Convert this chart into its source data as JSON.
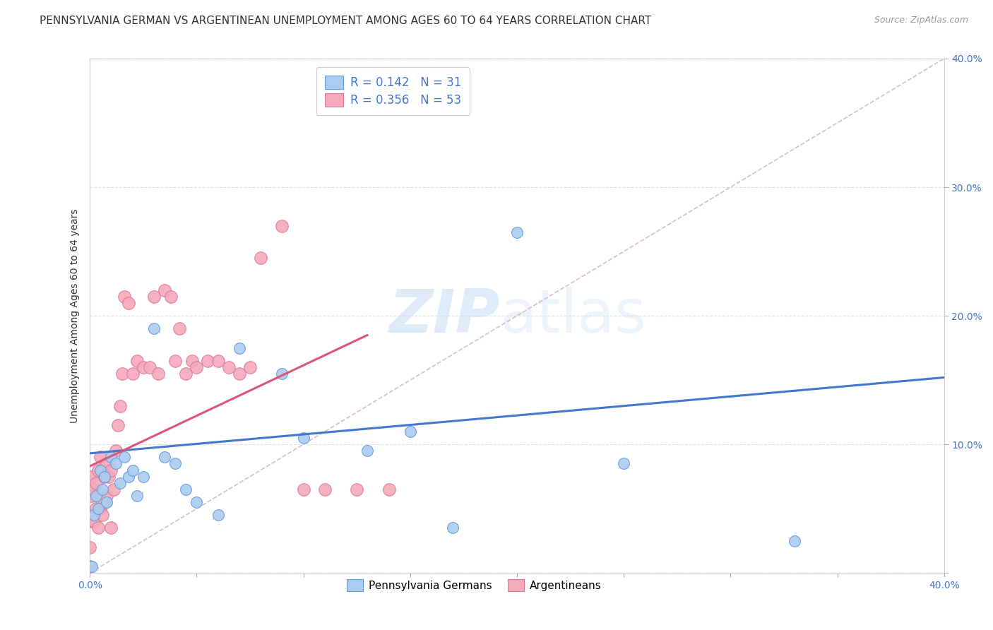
{
  "title": "PENNSYLVANIA GERMAN VS ARGENTINEAN UNEMPLOYMENT AMONG AGES 60 TO 64 YEARS CORRELATION CHART",
  "source": "Source: ZipAtlas.com",
  "ylabel": "Unemployment Among Ages 60 to 64 years",
  "xlim": [
    0.0,
    0.4
  ],
  "ylim": [
    0.0,
    0.4
  ],
  "background_color": "#ffffff",
  "watermark_zip": "ZIP",
  "watermark_atlas": "atlas",
  "blue_R": "0.142",
  "blue_N": "31",
  "pink_R": "0.356",
  "pink_N": "53",
  "blue_color": "#aaccf0",
  "pink_color": "#f5aabb",
  "blue_edge_color": "#6699dd",
  "pink_edge_color": "#dd7799",
  "blue_line_color": "#4477cc",
  "pink_line_color": "#dd5577",
  "blue_scatter_x": [
    0.001,
    0.002,
    0.003,
    0.004,
    0.005,
    0.006,
    0.007,
    0.008,
    0.01,
    0.012,
    0.014,
    0.016,
    0.018,
    0.02,
    0.022,
    0.025,
    0.03,
    0.035,
    0.04,
    0.045,
    0.05,
    0.06,
    0.07,
    0.09,
    0.1,
    0.13,
    0.15,
    0.17,
    0.2,
    0.25,
    0.33
  ],
  "blue_scatter_y": [
    0.005,
    0.045,
    0.06,
    0.05,
    0.08,
    0.065,
    0.075,
    0.055,
    0.09,
    0.085,
    0.07,
    0.09,
    0.075,
    0.08,
    0.06,
    0.075,
    0.19,
    0.09,
    0.085,
    0.065,
    0.055,
    0.045,
    0.175,
    0.155,
    0.105,
    0.095,
    0.11,
    0.035,
    0.265,
    0.085,
    0.025
  ],
  "pink_scatter_x": [
    0.0,
    0.0,
    0.0,
    0.001,
    0.001,
    0.002,
    0.002,
    0.003,
    0.003,
    0.004,
    0.004,
    0.005,
    0.005,
    0.006,
    0.006,
    0.007,
    0.007,
    0.008,
    0.008,
    0.009,
    0.01,
    0.01,
    0.011,
    0.012,
    0.013,
    0.014,
    0.015,
    0.016,
    0.018,
    0.02,
    0.022,
    0.025,
    0.028,
    0.03,
    0.032,
    0.035,
    0.038,
    0.04,
    0.042,
    0.045,
    0.048,
    0.05,
    0.055,
    0.06,
    0.065,
    0.07,
    0.075,
    0.08,
    0.09,
    0.1,
    0.11,
    0.125,
    0.14
  ],
  "pink_scatter_y": [
    0.005,
    0.02,
    0.04,
    0.06,
    0.075,
    0.04,
    0.065,
    0.05,
    0.07,
    0.035,
    0.08,
    0.05,
    0.09,
    0.045,
    0.08,
    0.055,
    0.075,
    0.06,
    0.085,
    0.075,
    0.035,
    0.08,
    0.065,
    0.095,
    0.115,
    0.13,
    0.155,
    0.215,
    0.21,
    0.155,
    0.165,
    0.16,
    0.16,
    0.215,
    0.155,
    0.22,
    0.215,
    0.165,
    0.19,
    0.155,
    0.165,
    0.16,
    0.165,
    0.165,
    0.16,
    0.155,
    0.16,
    0.245,
    0.27,
    0.065,
    0.065,
    0.065,
    0.065
  ],
  "blue_line_x0": 0.0,
  "blue_line_y0": 0.093,
  "blue_line_x1": 0.4,
  "blue_line_y1": 0.152,
  "pink_line_x0": 0.0,
  "pink_line_y0": 0.083,
  "pink_line_x1": 0.13,
  "pink_line_y1": 0.185,
  "diag_color": "#ddbbcc",
  "diag_style": "--",
  "grid_color": "#e0e0e0",
  "tick_color": "#4477cc",
  "title_fontsize": 11,
  "axis_fontsize": 10,
  "tick_fontsize": 10,
  "legend_fontsize": 12
}
